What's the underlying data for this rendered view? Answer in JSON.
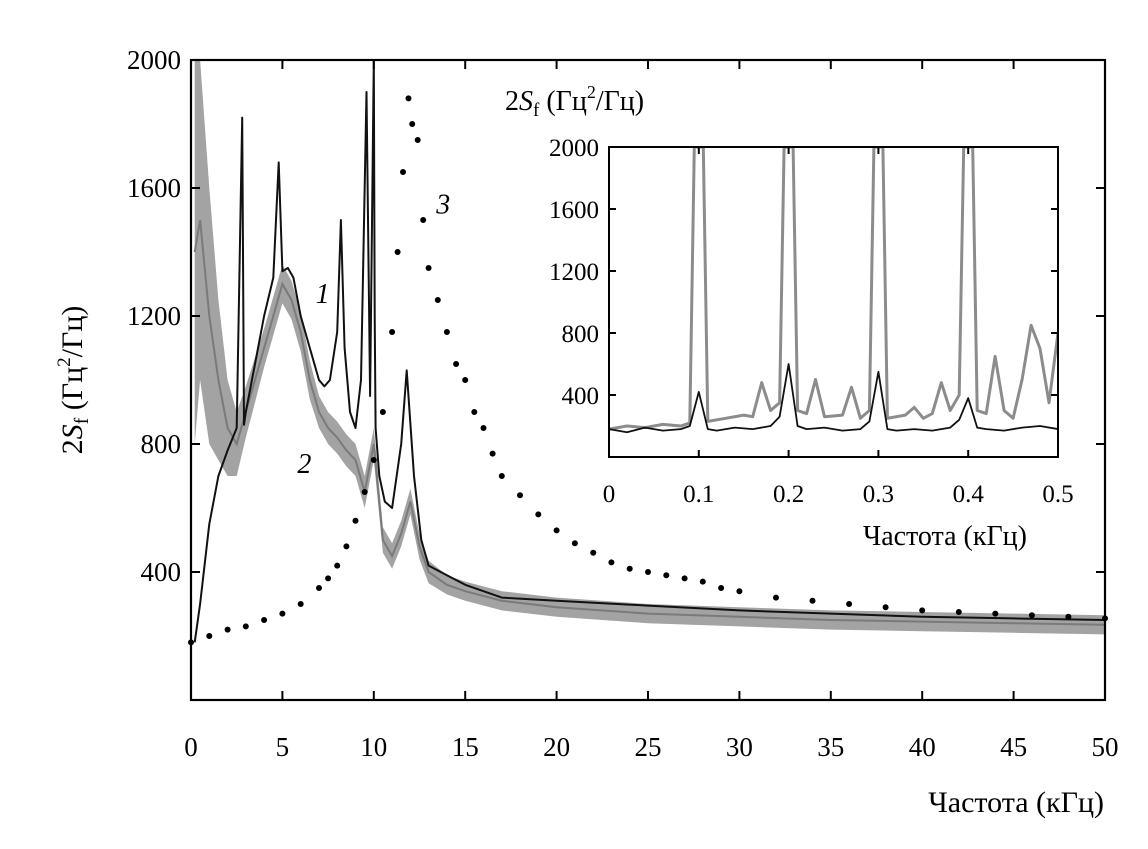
{
  "chart_data": [
    {
      "type": "line",
      "title": "",
      "xlabel": "Частота (кГц)",
      "ylabel": "2Sf (Гц²/Гц)",
      "ylabel_parts": {
        "base": "2",
        "sym": "S",
        "sub": "f",
        "unit_open": " (Гц",
        "sup": "2",
        "unit_close": "/Гц)"
      },
      "xlim": [
        0,
        50
      ],
      "ylim": [
        0,
        2000
      ],
      "x_ticks": [
        0,
        5,
        10,
        15,
        20,
        25,
        30,
        35,
        40,
        45,
        50
      ],
      "x_tick_labels": [
        "0",
        "5",
        "10",
        "15",
        "20",
        "25",
        "30",
        "35",
        "40",
        "45",
        "50"
      ],
      "y_ticks": [
        400,
        800,
        1200,
        1600,
        2000
      ],
      "y_tick_labels": [
        "400",
        "800",
        "1200",
        "1600",
        "2000"
      ],
      "grid": false,
      "series": [
        {
          "name": "1",
          "color": "#111111",
          "style": "line",
          "x": [
            0.2,
            0.5,
            1,
            1.5,
            2,
            2.5,
            2.8,
            2.9,
            3,
            3.5,
            4,
            4.5,
            4.8,
            5,
            5.3,
            5.6,
            6,
            6.5,
            7,
            7.3,
            7.6,
            8,
            8.2,
            8.4,
            8.7,
            9,
            9.3,
            9.6,
            9.8,
            10,
            10.05,
            10.1,
            10.3,
            10.6,
            11,
            11.5,
            11.8,
            12.2,
            12.6,
            13,
            14,
            15,
            17,
            20,
            25,
            30,
            35,
            40,
            45,
            50
          ],
          "y": [
            180,
            300,
            550,
            700,
            780,
            850,
            1820,
            860,
            900,
            1050,
            1200,
            1320,
            1680,
            1340,
            1350,
            1320,
            1200,
            1100,
            1000,
            980,
            1000,
            1150,
            1500,
            1100,
            900,
            850,
            1000,
            1900,
            950,
            2000,
            1200,
            850,
            700,
            620,
            600,
            800,
            1030,
            700,
            500,
            420,
            390,
            360,
            320,
            310,
            295,
            280,
            270,
            260,
            255,
            250
          ]
        },
        {
          "name": "2",
          "color": "#8c8c8c",
          "style": "band",
          "x": [
            0.2,
            0.5,
            1,
            1.5,
            2,
            2.5,
            3,
            3.5,
            4,
            4.5,
            5,
            5.5,
            6,
            6.5,
            7,
            7.5,
            8,
            8.5,
            9,
            9.5,
            10,
            10.5,
            11,
            11.5,
            12,
            12.5,
            13,
            14,
            15,
            17,
            20,
            25,
            30,
            35,
            40,
            45,
            50
          ],
          "y": [
            1400,
            1500,
            1200,
            1000,
            850,
            800,
            900,
            1000,
            1100,
            1200,
            1300,
            1250,
            1150,
            1000,
            900,
            850,
            820,
            780,
            750,
            650,
            800,
            500,
            450,
            520,
            620,
            480,
            400,
            360,
            340,
            310,
            290,
            270,
            260,
            250,
            245,
            240,
            235
          ],
          "spread": [
            600,
            500,
            400,
            250,
            150,
            100,
            80,
            70,
            60,
            60,
            60,
            60,
            60,
            60,
            50,
            50,
            50,
            50,
            50,
            50,
            50,
            40,
            40,
            40,
            40,
            40,
            35,
            30,
            30,
            30,
            30,
            30,
            30,
            30,
            30,
            30,
            30
          ]
        },
        {
          "name": "3",
          "color": "#000000",
          "style": "dots",
          "x": [
            0,
            1,
            2,
            3,
            4,
            5,
            6,
            7,
            7.5,
            8,
            8.5,
            9,
            9.5,
            10,
            10.5,
            11,
            11.3,
            11.6,
            11.9,
            12.1,
            12.4,
            12.7,
            13,
            13.5,
            14,
            14.5,
            15,
            15.5,
            16,
            16.5,
            17,
            18,
            19,
            20,
            21,
            22,
            23,
            24,
            25,
            26,
            27,
            28,
            29,
            30,
            32,
            34,
            36,
            38,
            40,
            42,
            44,
            46,
            48,
            50
          ],
          "y": [
            180,
            200,
            220,
            230,
            250,
            270,
            300,
            350,
            380,
            420,
            480,
            560,
            650,
            750,
            900,
            1150,
            1400,
            1650,
            1880,
            1800,
            1750,
            1500,
            1350,
            1250,
            1150,
            1050,
            1000,
            900,
            850,
            770,
            700,
            640,
            580,
            530,
            490,
            460,
            430,
            410,
            400,
            390,
            380,
            370,
            350,
            340,
            320,
            310,
            300,
            290,
            280,
            275,
            270,
            265,
            260,
            255
          ]
        }
      ],
      "annotations": [
        {
          "text": "1",
          "x": 7.2,
          "y": 1240
        },
        {
          "text": "2",
          "x": 6.2,
          "y": 710
        },
        {
          "text": "3",
          "x": 13.8,
          "y": 1520
        }
      ]
    },
    {
      "type": "line",
      "title": "",
      "xlabel": "Частота (кГц)",
      "ylabel": "2Sf (Гц²/Гц)",
      "ylabel_parts": {
        "base": "2",
        "sym": "S",
        "sub": "f",
        "unit_open": " (Гц",
        "sup": "2",
        "unit_close": "/Гц)"
      },
      "placement": "top-right inset",
      "xlim": [
        0,
        0.5
      ],
      "ylim": [
        0,
        2000
      ],
      "x_ticks": [
        0,
        0.1,
        0.2,
        0.3,
        0.4,
        0.5
      ],
      "x_tick_labels": [
        "0",
        "0.1",
        "0.2",
        "0.3",
        "0.4",
        "0.5"
      ],
      "y_ticks": [
        400,
        800,
        1200,
        1600,
        2000
      ],
      "y_tick_labels": [
        "400",
        "800",
        "1200",
        "1600",
        "2000"
      ],
      "grid": false,
      "series": [
        {
          "name": "",
          "color": "#8c8c8c",
          "style": "line",
          "x": [
            0,
            0.02,
            0.04,
            0.06,
            0.08,
            0.09,
            0.095,
            0.1,
            0.105,
            0.11,
            0.13,
            0.15,
            0.16,
            0.17,
            0.18,
            0.19,
            0.195,
            0.2,
            0.205,
            0.21,
            0.22,
            0.23,
            0.24,
            0.26,
            0.27,
            0.28,
            0.29,
            0.295,
            0.3,
            0.305,
            0.31,
            0.33,
            0.34,
            0.35,
            0.36,
            0.37,
            0.38,
            0.39,
            0.395,
            0.4,
            0.405,
            0.41,
            0.42,
            0.43,
            0.44,
            0.45,
            0.46,
            0.47,
            0.48,
            0.49,
            0.5
          ],
          "y": [
            180,
            200,
            190,
            210,
            200,
            220,
            2000,
            2000,
            2000,
            230,
            250,
            270,
            260,
            480,
            300,
            350,
            2000,
            2000,
            2000,
            300,
            280,
            500,
            260,
            270,
            450,
            250,
            300,
            2000,
            2000,
            2000,
            250,
            270,
            320,
            250,
            280,
            480,
            300,
            400,
            2000,
            2000,
            2000,
            300,
            280,
            650,
            300,
            250,
            500,
            850,
            700,
            350,
            800
          ]
        },
        {
          "name": "",
          "color": "#111111",
          "style": "line",
          "x": [
            0,
            0.02,
            0.04,
            0.06,
            0.08,
            0.09,
            0.1,
            0.11,
            0.12,
            0.14,
            0.16,
            0.18,
            0.19,
            0.2,
            0.21,
            0.22,
            0.24,
            0.26,
            0.28,
            0.29,
            0.3,
            0.31,
            0.32,
            0.34,
            0.36,
            0.38,
            0.39,
            0.4,
            0.41,
            0.42,
            0.44,
            0.46,
            0.48,
            0.5
          ],
          "y": [
            180,
            160,
            190,
            170,
            180,
            200,
            420,
            180,
            170,
            190,
            180,
            200,
            260,
            600,
            200,
            180,
            190,
            170,
            180,
            230,
            550,
            180,
            170,
            180,
            170,
            190,
            240,
            380,
            190,
            180,
            170,
            190,
            200,
            180
          ]
        }
      ]
    }
  ]
}
